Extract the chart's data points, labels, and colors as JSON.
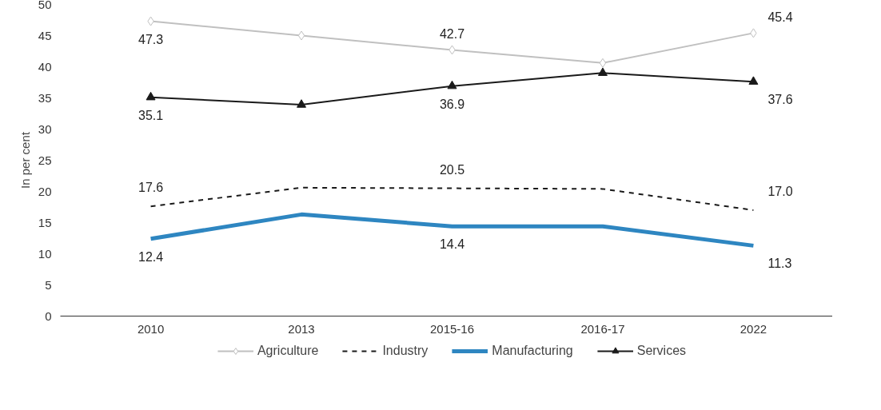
{
  "chart_data": {
    "type": "line",
    "ylabel": "In per cent",
    "categories": [
      "2010",
      "2013",
      "2015-16",
      "2016-17",
      "2022"
    ],
    "ylim": [
      0,
      50
    ],
    "yticks": [
      0,
      5,
      10,
      15,
      20,
      25,
      30,
      35,
      40,
      45,
      50
    ],
    "grid": false,
    "legend": "bottom",
    "series": [
      {
        "name": "Agriculture",
        "color": "#c0c0c0",
        "marker": "diamond",
        "line_style": "solid",
        "values": [
          47.3,
          45.0,
          42.7,
          40.6,
          45.4
        ],
        "value_labels": [
          "47.3",
          null,
          "42.7",
          null,
          "45.4"
        ]
      },
      {
        "name": "Industry",
        "color": "#1a1a1a",
        "marker": "none",
        "line_style": "dashed",
        "values": [
          17.6,
          20.6,
          20.5,
          20.4,
          17.0
        ],
        "value_labels": [
          "17.6",
          null,
          "20.5",
          null,
          "17.0"
        ]
      },
      {
        "name": "Manufacturing",
        "color": "#2e86c1",
        "marker": "none",
        "line_style": "solid",
        "values": [
          12.4,
          16.3,
          14.4,
          14.4,
          11.3
        ],
        "value_labels": [
          "12.4",
          null,
          "14.4",
          null,
          "11.3"
        ]
      },
      {
        "name": "Services",
        "color": "#1a1a1a",
        "marker": "triangle",
        "line_style": "solid",
        "values": [
          35.1,
          33.9,
          36.9,
          39.0,
          37.6
        ],
        "value_labels": [
          "35.1",
          null,
          "36.9",
          null,
          "37.6"
        ]
      }
    ]
  }
}
